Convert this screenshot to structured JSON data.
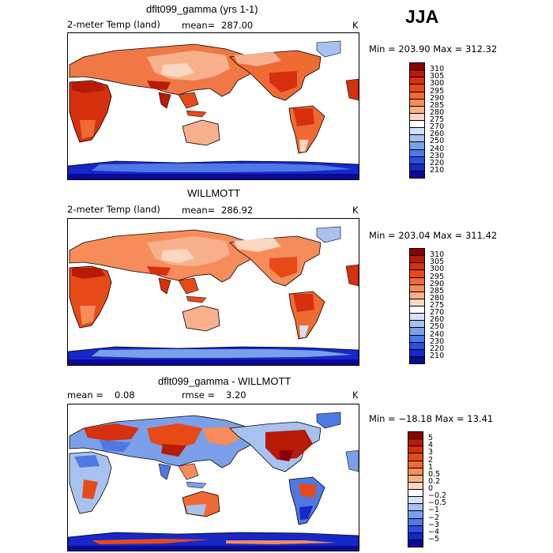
{
  "season": "JJA",
  "panels": [
    {
      "title": "dflt099_gamma (yrs 1-1)",
      "variable": "2-meter Temp (land)",
      "mean_label": "mean=",
      "mean_value": "287.00",
      "units": "K",
      "minmax": "Min = 203.90 Max = 312.32",
      "colorbar": {
        "labels": [
          "310",
          "305",
          "300",
          "295",
          "290",
          "285",
          "280",
          "275",
          "270",
          "260",
          "250",
          "240",
          "230",
          "220",
          "210"
        ],
        "colors": [
          "#8b0000",
          "#b81a08",
          "#d6300e",
          "#e84a17",
          "#f06a33",
          "#f58c5a",
          "#f8b08c",
          "#fbd6c0",
          "#ffffff",
          "#d5e2f6",
          "#a8c2ef",
          "#7aa0ea",
          "#4d78e6",
          "#2b4fe0",
          "#1628c8",
          "#0a0a96"
        ]
      }
    },
    {
      "title": "WILLMOTT",
      "variable": "2-meter Temp (land)",
      "mean_label": "mean=",
      "mean_value": "286.92",
      "units": "K",
      "minmax": "Min = 203.04 Max = 311.42",
      "colorbar": {
        "labels": [
          "310",
          "305",
          "300",
          "295",
          "290",
          "285",
          "280",
          "275",
          "270",
          "260",
          "250",
          "240",
          "230",
          "220",
          "210"
        ],
        "colors": [
          "#8b0000",
          "#b81a08",
          "#d6300e",
          "#e84a17",
          "#f06a33",
          "#f58c5a",
          "#f8b08c",
          "#fbd6c0",
          "#ffffff",
          "#d5e2f6",
          "#a8c2ef",
          "#7aa0ea",
          "#4d78e6",
          "#2b4fe0",
          "#1628c8",
          "#0a0a96"
        ]
      }
    },
    {
      "title": "dflt099_gamma - WILLMOTT",
      "mean_label": "mean =",
      "mean_value": "0.08",
      "rmse_label": "rmse =",
      "rmse_value": "3.20",
      "units": "K",
      "minmax": "Min = −18.18 Max =   13.41",
      "colorbar": {
        "labels": [
          "5",
          "4",
          "3",
          "2",
          "1",
          "0.5",
          "0.2",
          "0",
          "−0.2",
          "−0.5",
          "−1",
          "−2",
          "−3",
          "−4",
          "−5"
        ],
        "colors": [
          "#8b0000",
          "#b81a08",
          "#d6300e",
          "#e84a17",
          "#f06a33",
          "#f58c5a",
          "#f8b08c",
          "#fbd6c0",
          "#ffffff",
          "#d5e2f6",
          "#a8c2ef",
          "#7aa0ea",
          "#4d78e6",
          "#2b4fe0",
          "#1628c8",
          "#0a0a96"
        ]
      }
    }
  ]
}
